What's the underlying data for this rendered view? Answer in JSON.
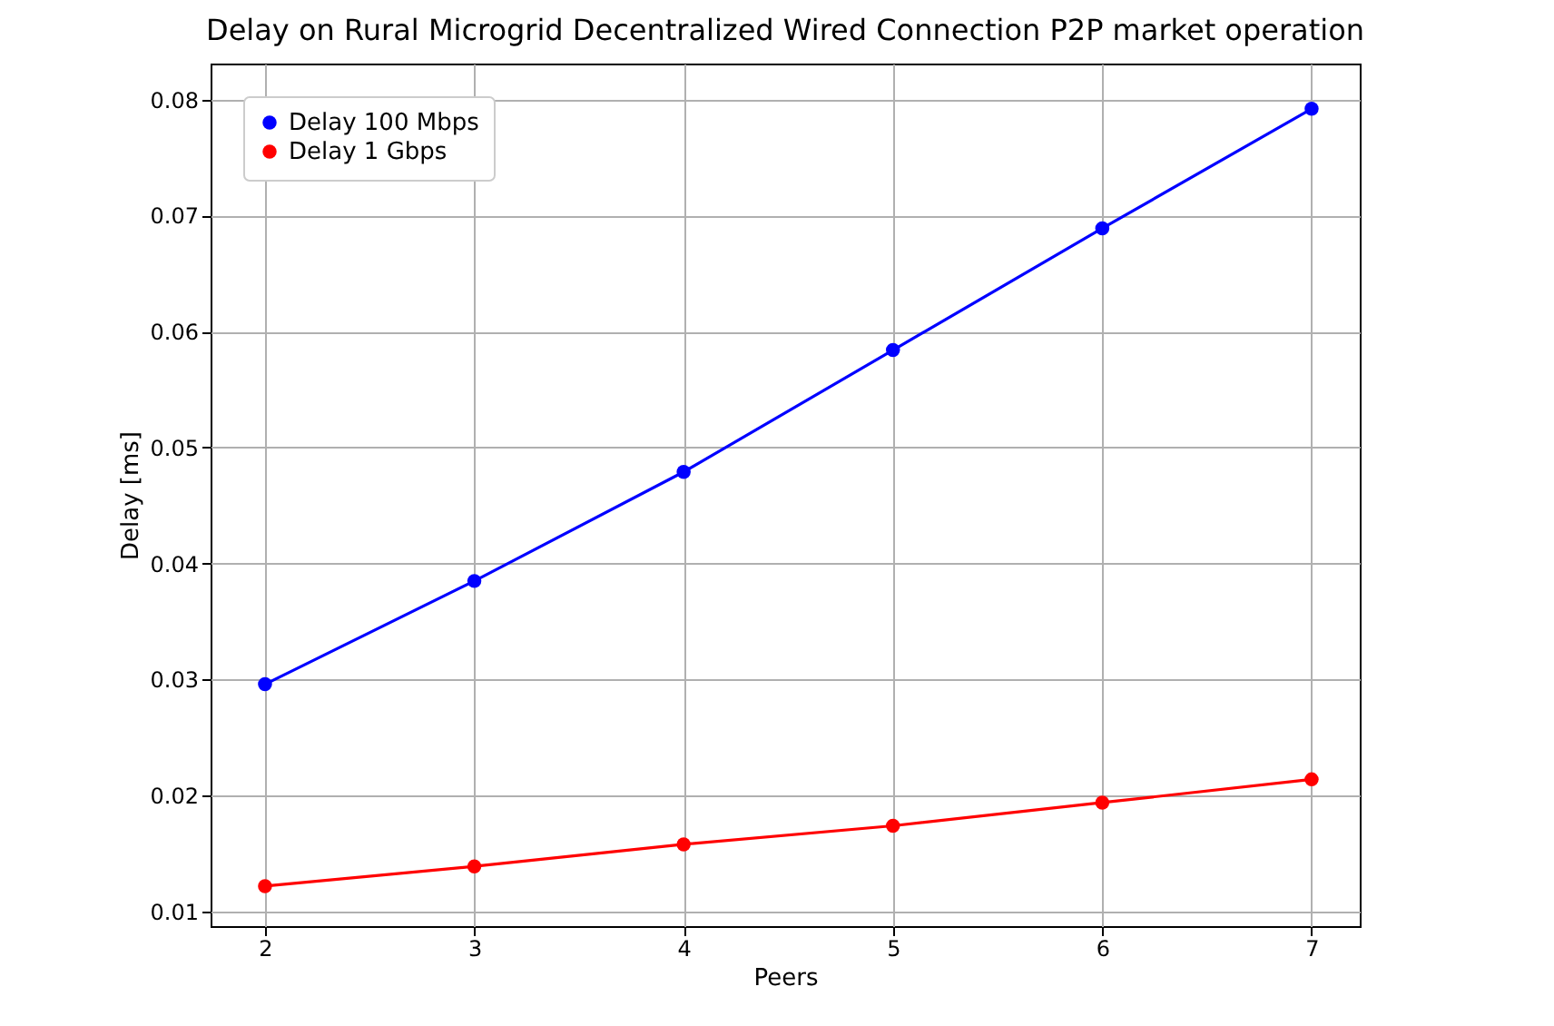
{
  "chart_data": {
    "type": "line",
    "title": "Delay on Rural Microgrid Decentralized Wired Connection P2P market operation",
    "xlabel": "Peers",
    "ylabel": "Delay [ms]",
    "x": [
      2,
      3,
      4,
      5,
      6,
      7
    ],
    "series": [
      {
        "name": "Delay 100 Mbps",
        "color": "#0000ff",
        "values": [
          0.0296,
          0.0385,
          0.0479,
          0.0584,
          0.0689,
          0.0792
        ]
      },
      {
        "name": "Delay 1 Gbps",
        "color": "#ff0000",
        "values": [
          0.0122,
          0.0139,
          0.0158,
          0.0174,
          0.0194,
          0.0214
        ]
      }
    ],
    "xlim": [
      1.74,
      7.23
    ],
    "ylim": [
      0.00875,
      0.0831
    ],
    "xticks": [
      2,
      3,
      4,
      5,
      6,
      7
    ],
    "yticks": [
      0.01,
      0.02,
      0.03,
      0.04,
      0.05,
      0.06,
      0.07,
      0.08
    ],
    "grid": true,
    "legend": "top left",
    "marker": "circle",
    "line_style": "solid"
  }
}
